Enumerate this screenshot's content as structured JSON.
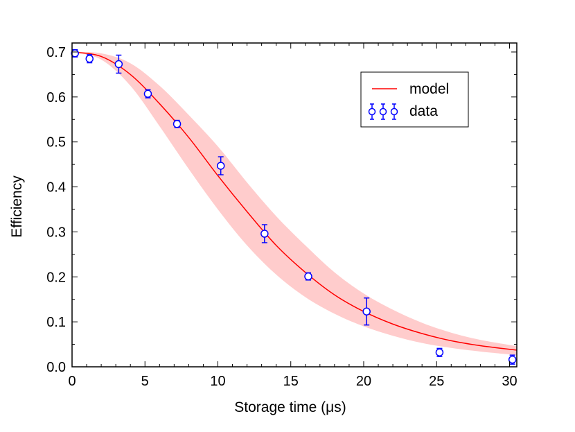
{
  "chart_data": {
    "type": "scatter",
    "xlabel": "Storage time (μs)",
    "ylabel": "Efficiency",
    "xlim": [
      0,
      30.5
    ],
    "ylim": [
      0,
      0.72
    ],
    "xticks": [
      0,
      5,
      10,
      15,
      20,
      25,
      30
    ],
    "xtick_labels": [
      "0",
      "5",
      "10",
      "15",
      "20",
      "25",
      "30"
    ],
    "yticks": [
      0.0,
      0.1,
      0.2,
      0.3,
      0.4,
      0.5,
      0.6,
      0.7
    ],
    "ytick_labels": [
      "0.0",
      "0.1",
      "0.2",
      "0.3",
      "0.4",
      "0.5",
      "0.6",
      "0.7"
    ],
    "grid": false,
    "legend_position": "top-right",
    "colors": {
      "model": "#ff0000",
      "band": "#ffcccc",
      "data": "#0000ff"
    },
    "series": [
      {
        "name": "model",
        "kind": "line",
        "x": [
          0,
          2,
          4,
          6,
          8,
          10,
          12,
          14,
          16,
          18,
          20,
          22,
          24,
          26,
          28,
          30.5
        ],
        "y": [
          0.7,
          0.69,
          0.65,
          0.585,
          0.51,
          0.425,
          0.345,
          0.27,
          0.21,
          0.16,
          0.123,
          0.095,
          0.074,
          0.058,
          0.047,
          0.037
        ],
        "lower": [
          0.7,
          0.683,
          0.625,
          0.535,
          0.44,
          0.35,
          0.27,
          0.205,
          0.155,
          0.118,
          0.09,
          0.069,
          0.053,
          0.042,
          0.034,
          0.026
        ],
        "upper": [
          0.7,
          0.697,
          0.675,
          0.625,
          0.56,
          0.49,
          0.41,
          0.335,
          0.27,
          0.21,
          0.163,
          0.127,
          0.098,
          0.076,
          0.06,
          0.046
        ]
      },
      {
        "name": "data",
        "kind": "errorbar",
        "x": [
          0.2,
          1.2,
          3.2,
          5.2,
          7.2,
          10.2,
          13.2,
          16.2,
          20.2,
          25.2,
          30.2
        ],
        "y": [
          0.697,
          0.685,
          0.673,
          0.607,
          0.54,
          0.447,
          0.296,
          0.201,
          0.123,
          0.032,
          0.016
        ],
        "err": [
          0.008,
          0.009,
          0.02,
          0.009,
          0.008,
          0.02,
          0.02,
          0.008,
          0.03,
          0.009,
          0.01
        ]
      }
    ]
  }
}
